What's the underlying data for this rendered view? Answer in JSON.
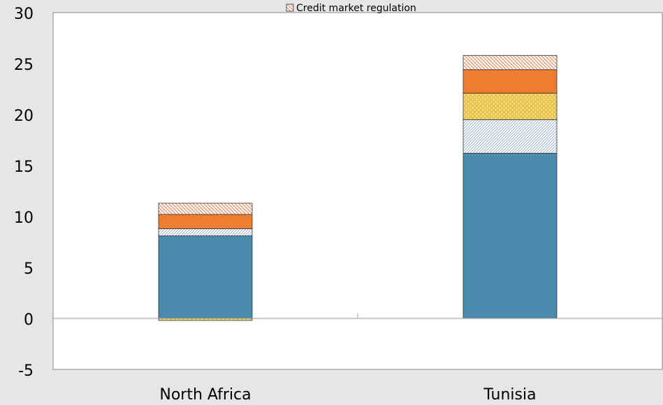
{
  "chart_data": {
    "type": "bar",
    "stacked": true,
    "categories": [
      "North Africa",
      "Tunisia"
    ],
    "series": [
      {
        "name": "",
        "color": "#4a8aad",
        "pattern": "solid",
        "values": [
          8.1,
          16.2
        ]
      },
      {
        "name": "",
        "color": "#a9bfd6",
        "pattern": "fine-diagonal",
        "values": [
          0.7,
          3.3
        ]
      },
      {
        "name": "",
        "color": "#e8c34a",
        "pattern": "dots",
        "values": [
          -0.2,
          2.6
        ]
      },
      {
        "name": "",
        "color": "#ef7d31",
        "pattern": "solid",
        "values": [
          1.4,
          2.3
        ]
      },
      {
        "name": "Credit market regulation",
        "color": "#e07a50",
        "pattern": "cross-hatch",
        "values": [
          1.1,
          1.4
        ]
      }
    ],
    "legend": {
      "items": [
        "Credit market regulation"
      ],
      "placement": "top-center"
    },
    "ylim": [
      -5,
      30
    ],
    "yticks": [
      -5,
      0,
      5,
      10,
      15,
      20,
      25,
      30
    ],
    "ytick_labels": [
      "-5",
      "0",
      "5",
      "10",
      "15",
      "20",
      "25",
      "30"
    ],
    "title": "",
    "xlabel": "",
    "ylabel": "",
    "grid": false
  }
}
